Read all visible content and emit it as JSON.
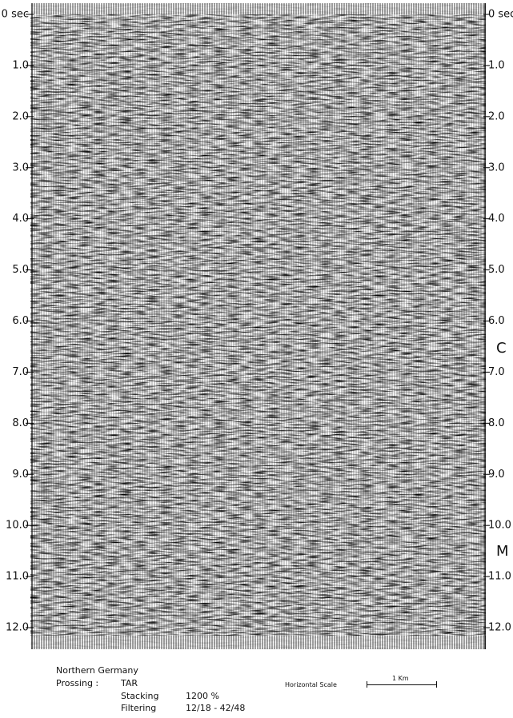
{
  "time_axis": {
    "labels": [
      "0 sec",
      "1.0",
      "2.0",
      "3.0",
      "4.0",
      "5.0",
      "6.0",
      "7.0",
      "8.0",
      "9.0",
      "10.0",
      "11.0",
      "12.0"
    ]
  },
  "markers": [
    "C",
    "M"
  ],
  "caption": {
    "region": "Northern Germany",
    "processing_label": "Prossing :",
    "processing_value": "TAR",
    "rows": [
      [
        "Stacking",
        "1200 %"
      ],
      [
        "Filtering",
        "12/18 - 42/48"
      ]
    ]
  },
  "scale": {
    "label": "Horizontal Scale",
    "length": "1 Km"
  }
}
